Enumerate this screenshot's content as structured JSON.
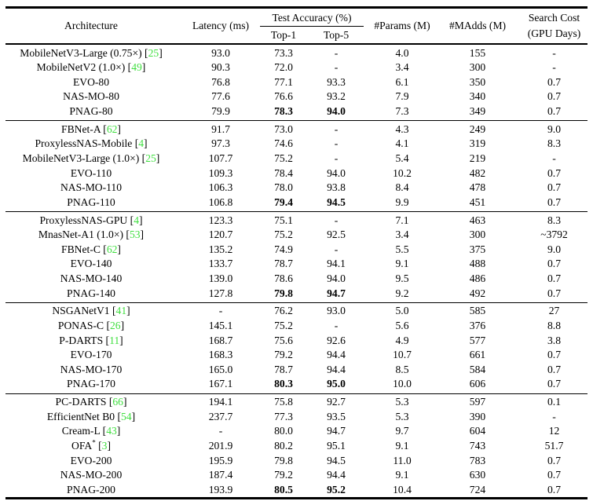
{
  "table": {
    "cite_color": "#3fdf3f",
    "columns": {
      "architecture": "Architecture",
      "latency": "Latency (ms)",
      "test_accuracy": "Test Accuracy (%)",
      "top1": "Top-1",
      "top5": "Top-5",
      "params": "#Params (M)",
      "madds": "#MAdds (M)",
      "search_cost_line1": "Search Cost",
      "search_cost_line2": "(GPU Days)"
    },
    "groups": [
      {
        "rows": [
          {
            "name": "MobileNetV3-Large (0.75×)",
            "cite": "25",
            "latency": "93.0",
            "top1": "73.3",
            "top5": "-",
            "params": "4.0",
            "madds": "155",
            "cost": "-"
          },
          {
            "name": "MobileNetV2 (1.0×)",
            "cite": "49",
            "latency": "90.3",
            "top1": "72.0",
            "top5": "-",
            "params": "3.4",
            "madds": "300",
            "cost": "-"
          },
          {
            "name": "EVO-80",
            "latency": "76.8",
            "top1": "77.1",
            "top5": "93.3",
            "params": "6.1",
            "madds": "350",
            "cost": "0.7"
          },
          {
            "name": "NAS-MO-80",
            "latency": "77.6",
            "top1": "76.6",
            "top5": "93.2",
            "params": "7.9",
            "madds": "340",
            "cost": "0.7"
          },
          {
            "name": "PNAG-80",
            "latency": "79.9",
            "top1": "78.3",
            "top5": "94.0",
            "params": "7.3",
            "madds": "349",
            "cost": "0.7",
            "bold_acc": true
          }
        ]
      },
      {
        "rows": [
          {
            "name": "FBNet-A",
            "cite": "62",
            "latency": "91.7",
            "top1": "73.0",
            "top5": "-",
            "params": "4.3",
            "madds": "249",
            "cost": "9.0"
          },
          {
            "name": "ProxylessNAS-Mobile",
            "cite": "4",
            "latency": "97.3",
            "top1": "74.6",
            "top5": "-",
            "params": "4.1",
            "madds": "319",
            "cost": "8.3"
          },
          {
            "name": "MobileNetV3-Large (1.0×)",
            "cite": "25",
            "latency": "107.7",
            "top1": "75.2",
            "top5": "-",
            "params": "5.4",
            "madds": "219",
            "cost": "-"
          },
          {
            "name": "EVO-110",
            "latency": "109.3",
            "top1": "78.4",
            "top5": "94.0",
            "params": "10.2",
            "madds": "482",
            "cost": "0.7"
          },
          {
            "name": "NAS-MO-110",
            "latency": "106.3",
            "top1": "78.0",
            "top5": "93.8",
            "params": "8.4",
            "madds": "478",
            "cost": "0.7"
          },
          {
            "name": "PNAG-110",
            "latency": "106.8",
            "top1": "79.4",
            "top5": "94.5",
            "params": "9.9",
            "madds": "451",
            "cost": "0.7",
            "bold_acc": true
          }
        ]
      },
      {
        "rows": [
          {
            "name": "ProxylessNAS-GPU",
            "cite": "4",
            "latency": "123.3",
            "top1": "75.1",
            "top5": "-",
            "params": "7.1",
            "madds": "463",
            "cost": "8.3"
          },
          {
            "name": "MnasNet-A1 (1.0×)",
            "cite": "53",
            "latency": "120.7",
            "top1": "75.2",
            "top5": "92.5",
            "params": "3.4",
            "madds": "300",
            "cost": "~3792"
          },
          {
            "name": "FBNet-C",
            "cite": "62",
            "latency": "135.2",
            "top1": "74.9",
            "top5": "-",
            "params": "5.5",
            "madds": "375",
            "cost": "9.0"
          },
          {
            "name": "EVO-140",
            "latency": "133.7",
            "top1": "78.7",
            "top5": "94.1",
            "params": "9.1",
            "madds": "488",
            "cost": "0.7"
          },
          {
            "name": "NAS-MO-140",
            "latency": "139.0",
            "top1": "78.6",
            "top5": "94.0",
            "params": "9.5",
            "madds": "486",
            "cost": "0.7"
          },
          {
            "name": "PNAG-140",
            "latency": "127.8",
            "top1": "79.8",
            "top5": "94.7",
            "params": "9.2",
            "madds": "492",
            "cost": "0.7",
            "bold_acc": true
          }
        ]
      },
      {
        "rows": [
          {
            "name": "NSGANetV1",
            "cite": "41",
            "latency": "-",
            "top1": "76.2",
            "top5": "93.0",
            "params": "5.0",
            "madds": "585",
            "cost": "27"
          },
          {
            "name": "PONAS-C",
            "cite": "26",
            "latency": "145.1",
            "top1": "75.2",
            "top5": "-",
            "params": "5.6",
            "madds": "376",
            "cost": "8.8"
          },
          {
            "name": "P-DARTS",
            "cite": "11",
            "latency": "168.7",
            "top1": "75.6",
            "top5": "92.6",
            "params": "4.9",
            "madds": "577",
            "cost": "3.8"
          },
          {
            "name": "EVO-170",
            "latency": "168.3",
            "top1": "79.2",
            "top5": "94.4",
            "params": "10.7",
            "madds": "661",
            "cost": "0.7"
          },
          {
            "name": "NAS-MO-170",
            "latency": "165.0",
            "top1": "78.7",
            "top5": "94.4",
            "params": "8.5",
            "madds": "584",
            "cost": "0.7"
          },
          {
            "name": "PNAG-170",
            "latency": "167.1",
            "top1": "80.3",
            "top5": "95.0",
            "params": "10.0",
            "madds": "606",
            "cost": "0.7",
            "bold_acc": true
          }
        ]
      },
      {
        "rows": [
          {
            "name": "PC-DARTS",
            "cite": "66",
            "latency": "194.1",
            "top1": "75.8",
            "top5": "92.7",
            "params": "5.3",
            "madds": "597",
            "cost": "0.1"
          },
          {
            "name": "EfficientNet B0",
            "cite": "54",
            "latency": "237.7",
            "top1": "77.3",
            "top5": "93.5",
            "params": "5.3",
            "madds": "390",
            "cost": "-"
          },
          {
            "name": "Cream-L",
            "cite": "43",
            "latency": "-",
            "top1": "80.0",
            "top5": "94.7",
            "params": "9.7",
            "madds": "604",
            "cost": "12"
          },
          {
            "name": "OFA",
            "sup": "*",
            "cite": "3",
            "latency": "201.9",
            "top1": "80.2",
            "top5": "95.1",
            "params": "9.1",
            "madds": "743",
            "cost": "51.7"
          },
          {
            "name": "EVO-200",
            "latency": "195.9",
            "top1": "79.8",
            "top5": "94.5",
            "params": "11.0",
            "madds": "783",
            "cost": "0.7"
          },
          {
            "name": "NAS-MO-200",
            "latency": "187.4",
            "top1": "79.2",
            "top5": "94.4",
            "params": "9.1",
            "madds": "630",
            "cost": "0.7"
          },
          {
            "name": "PNAG-200",
            "latency": "193.9",
            "top1": "80.5",
            "top5": "95.2",
            "params": "10.4",
            "madds": "724",
            "cost": "0.7",
            "bold_acc": true
          }
        ]
      }
    ]
  }
}
